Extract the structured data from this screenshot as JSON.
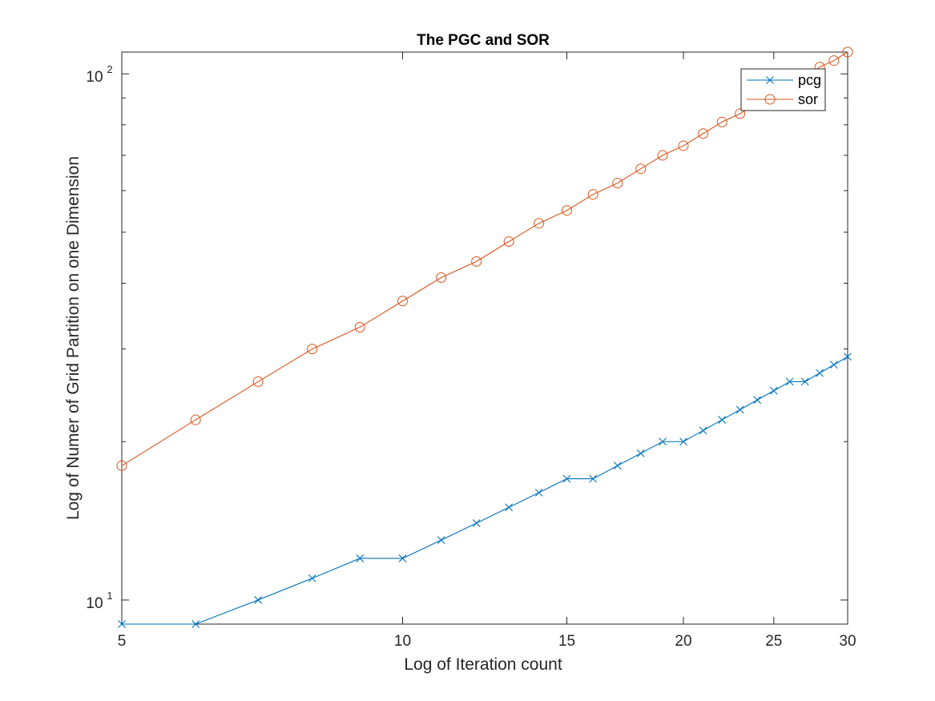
{
  "chart_data": {
    "type": "line",
    "title": "The PGC and SOR",
    "xlabel": "Log of Iteration count",
    "ylabel": "Log of Numer of Grid Partition on one Dimension",
    "xscale": "log",
    "yscale": "log",
    "xlim": [
      5,
      30
    ],
    "ylim": [
      9,
      110
    ],
    "xticks": [
      {
        "value": 5,
        "label": "5"
      },
      {
        "value": 10,
        "label": "10"
      },
      {
        "value": 15,
        "label": "15"
      },
      {
        "value": 20,
        "label": "20"
      },
      {
        "value": 25,
        "label": "25"
      },
      {
        "value": 30,
        "label": "30"
      }
    ],
    "yticks": [
      {
        "value": 10,
        "base": "10",
        "exp": "1"
      },
      {
        "value": 100,
        "base": "10",
        "exp": "2"
      }
    ],
    "grid": false,
    "legend_position": "top-right",
    "series": [
      {
        "name": "pcg",
        "color": "#0072BD",
        "marker": "x",
        "x": [
          5,
          6,
          7,
          8,
          9,
          10,
          11,
          12,
          13,
          14,
          15,
          16,
          17,
          18,
          19,
          20,
          21,
          22,
          23,
          24,
          25,
          26,
          27,
          28,
          29,
          30
        ],
        "y": [
          9,
          9,
          10,
          11,
          12,
          12,
          13,
          14,
          15,
          16,
          17,
          17,
          18,
          19,
          20,
          20,
          21,
          22,
          23,
          24,
          25,
          26,
          26,
          27,
          28,
          29
        ]
      },
      {
        "name": "sor",
        "color": "#D95319",
        "marker": "o",
        "x": [
          5,
          6,
          7,
          8,
          9,
          10,
          11,
          12,
          13,
          14,
          15,
          16,
          17,
          18,
          19,
          20,
          21,
          22,
          23,
          24,
          25,
          26,
          27,
          28,
          29,
          30
        ],
        "y": [
          18,
          22,
          26,
          30,
          33,
          37,
          41,
          44,
          48,
          52,
          55,
          59,
          62,
          66,
          70,
          73,
          77,
          81,
          84,
          88,
          92,
          96,
          99,
          103,
          106,
          110
        ]
      }
    ]
  }
}
